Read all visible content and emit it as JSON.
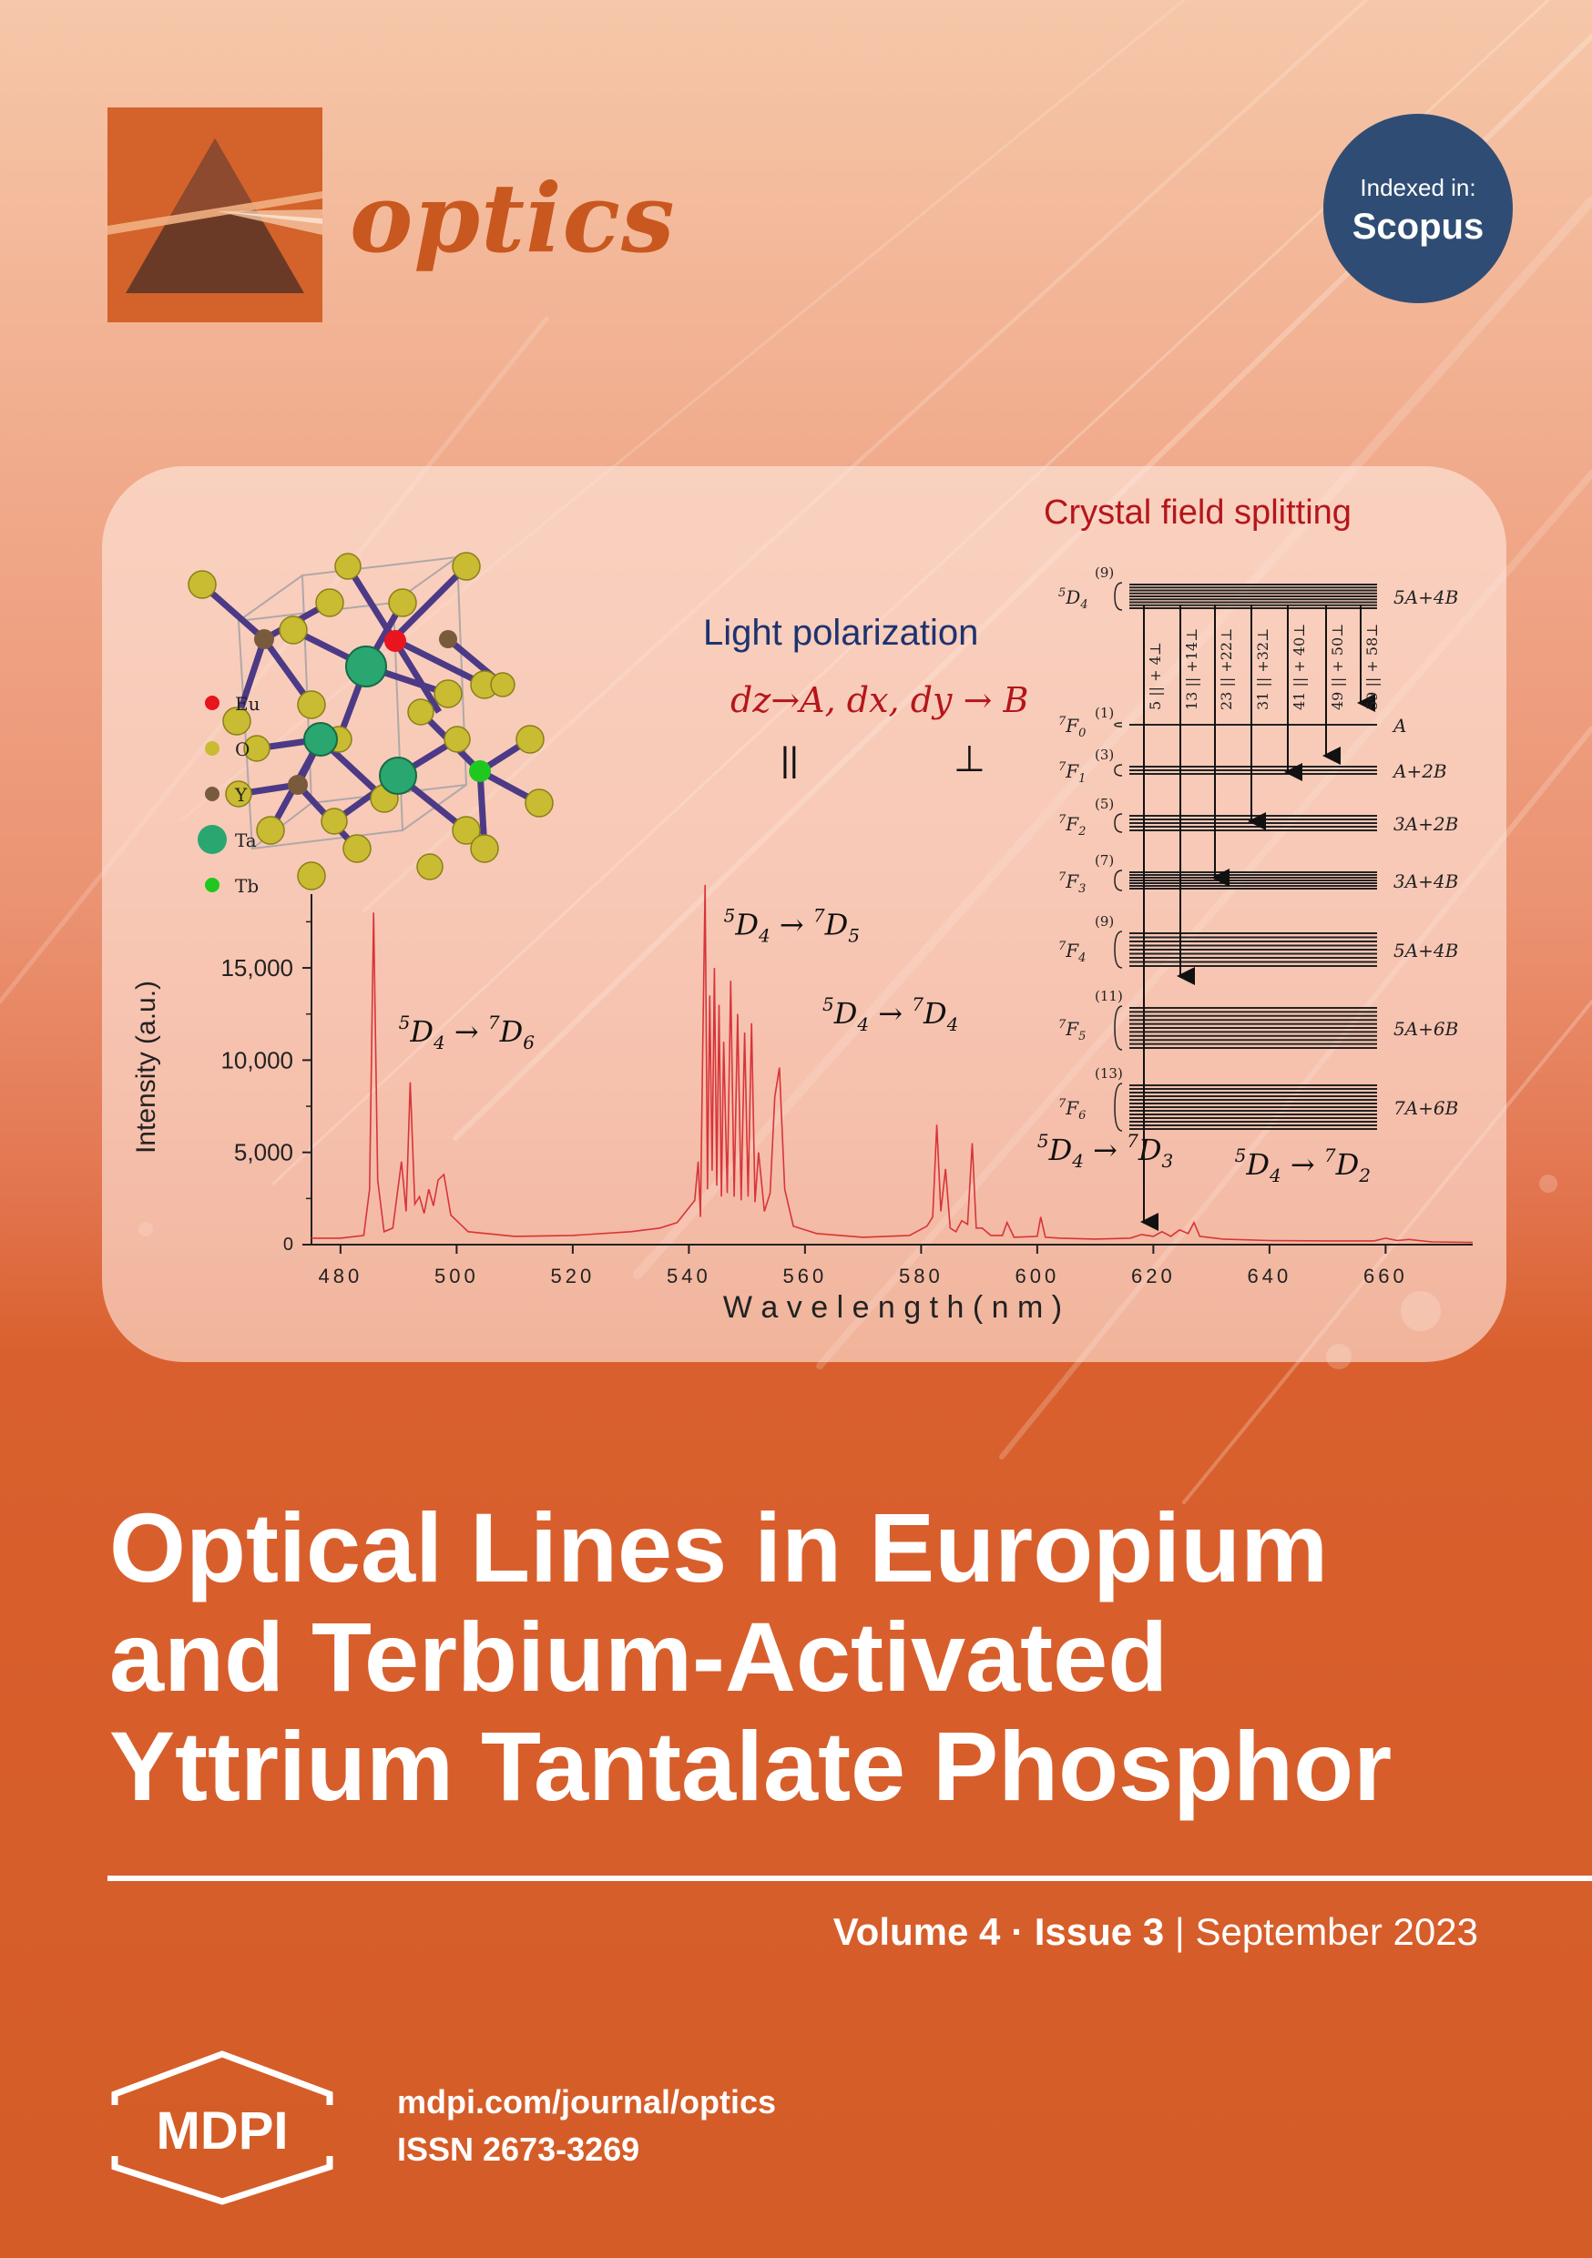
{
  "journal": {
    "name": "optics"
  },
  "badge": {
    "line1": "Indexed in:",
    "line2": "Scopus"
  },
  "figure": {
    "crystal_field_title": "Crystal field splitting",
    "polarization_title": "Light polarization",
    "polarization_formula": "dz→A, dx, dy → B",
    "parallel_symbol": "||",
    "perp_symbol": "⊥",
    "legend": [
      "Eu",
      "O",
      "Y",
      "Ta",
      "Tb"
    ],
    "legend_colors": [
      "#e8141e",
      "#c9bb32",
      "#7a5a3c",
      "#2aa771",
      "#1ec81e"
    ],
    "levels": [
      {
        "term": "5D4",
        "count": "(9)",
        "label": "5A+4B"
      },
      {
        "term": "7F0",
        "count": "(1)",
        "label": "A"
      },
      {
        "term": "7F1",
        "count": "(3)",
        "label": "A+2B"
      },
      {
        "term": "7F2",
        "count": "(5)",
        "label": "3A+2B"
      },
      {
        "term": "7F3",
        "count": "(7)",
        "label": "3A+4B"
      },
      {
        "term": "7F4",
        "count": "(9)",
        "label": "5A+4B"
      },
      {
        "term": "7F5",
        "count": "(11)",
        "label": "5A+6B"
      },
      {
        "term": "7F6",
        "count": "(13)",
        "label": "7A+6B"
      }
    ],
    "transition_labels": [
      "5 || + 4⊥",
      "13 || +14⊥",
      "23 || +22⊥",
      "31 || +32⊥",
      "41 || + 40⊥",
      "49 || + 50⊥",
      "59 || + 58⊥"
    ]
  },
  "chart_data": {
    "type": "line",
    "xlabel": "W a v e l e n g t h  ( n m )",
    "ylabel": "Intensity (a.u.)",
    "xlim": [
      475,
      675
    ],
    "ylim": [
      0,
      19000
    ],
    "xticks": [
      480,
      500,
      520,
      540,
      560,
      580,
      600,
      620,
      640,
      660
    ],
    "yticks": [
      0,
      5000,
      10000,
      15000
    ],
    "ytick_labels": [
      "0",
      "5,000",
      "10,000",
      "15,000"
    ],
    "series": [
      {
        "color": "#d8343a",
        "x": [
          475,
          480,
          484,
          485,
          485.7,
          486.4,
          487.5,
          489,
          490.5,
          491.3,
          492,
          492.8,
          493.6,
          494.4,
          495.2,
          496,
          496.8,
          497.8,
          499,
          502,
          510,
          520,
          530,
          535,
          538,
          540,
          541,
          541.6,
          542,
          542.4,
          542.8,
          543.2,
          543.6,
          544,
          544.4,
          544.8,
          545.2,
          545.6,
          546,
          546.6,
          547.2,
          547.8,
          548.4,
          549,
          549.6,
          550.2,
          550.8,
          551.4,
          552,
          553,
          554,
          554.8,
          555.6,
          556.5,
          558,
          562,
          570,
          578,
          581,
          582,
          582.7,
          583.4,
          584.2,
          585,
          586,
          587,
          588,
          588.8,
          589.5,
          590.5,
          592,
          594,
          594.8,
          596,
          600,
          600.6,
          601.4,
          604,
          610,
          616,
          618,
          620,
          621.5,
          623,
          624.5,
          626,
          627,
          628,
          632,
          640,
          650,
          658,
          660,
          662,
          664,
          668,
          675
        ],
        "y": [
          350,
          350,
          500,
          3000,
          18000,
          3500,
          700,
          900,
          4500,
          1800,
          8800,
          2200,
          2600,
          1700,
          3000,
          2100,
          3500,
          3800,
          1600,
          700,
          450,
          500,
          700,
          900,
          1200,
          2000,
          2400,
          4500,
          1500,
          11000,
          20000,
          3000,
          13500,
          4000,
          15000,
          3200,
          13000,
          2600,
          11000,
          2800,
          14300,
          2600,
          12500,
          2400,
          11500,
          2600,
          12000,
          2300,
          5000,
          1800,
          2800,
          8000,
          9600,
          3000,
          1000,
          600,
          400,
          500,
          1000,
          1500,
          6500,
          1800,
          4100,
          900,
          700,
          1300,
          1100,
          5500,
          900,
          900,
          500,
          500,
          1200,
          400,
          450,
          1500,
          400,
          350,
          300,
          350,
          550,
          450,
          700,
          450,
          800,
          600,
          1200,
          450,
          300,
          220,
          200,
          200,
          350,
          220,
          280,
          150,
          120
        ]
      }
    ],
    "annotations": [
      {
        "upper": "5",
        "lower": "7",
        "sub": "6"
      },
      {
        "upper": "5",
        "lower": "7",
        "sub": "5"
      },
      {
        "upper": "5",
        "lower": "7",
        "sub": "4"
      },
      {
        "upper": "5",
        "lower": "7",
        "sub": "3"
      },
      {
        "upper": "5",
        "lower": "7",
        "sub": "2"
      }
    ]
  },
  "article_title_lines": [
    "Optical Lines in Europium",
    "and Terbium-Activated",
    "Yttrium Tantalate Phosphor"
  ],
  "issue": {
    "volume": "Volume 4",
    "dot": "·",
    "issue": "Issue 3",
    "sep": "|",
    "date": "September 2023"
  },
  "footer": {
    "publisher": "MDPI",
    "url": "mdpi.com/journal/optics",
    "issn": "ISSN 2673-3269"
  }
}
